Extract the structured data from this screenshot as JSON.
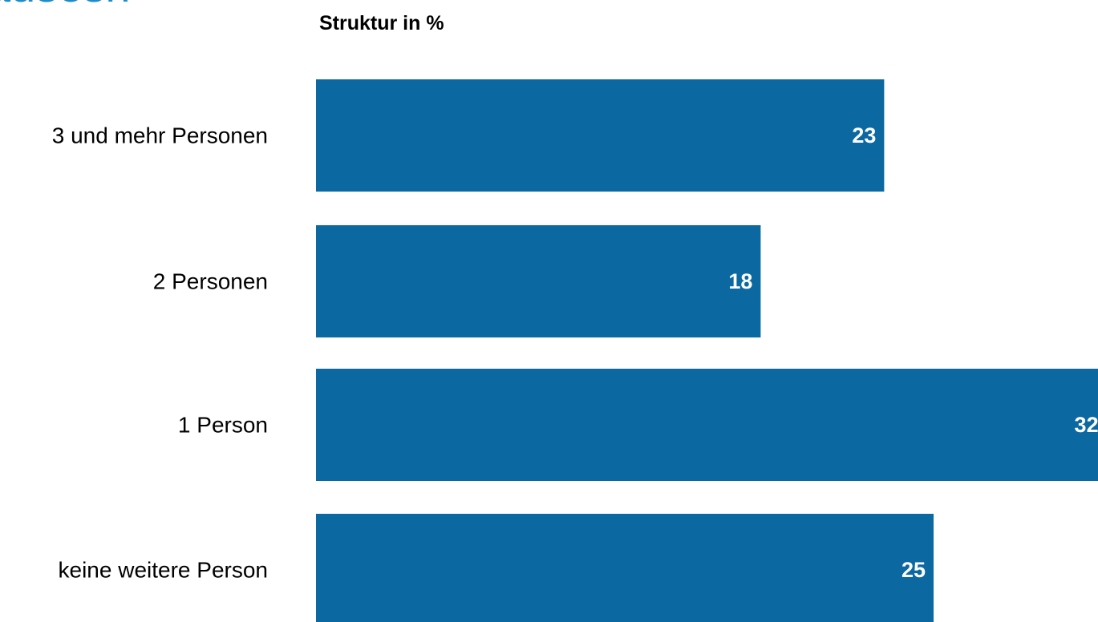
{
  "header": {
    "title_fragment": "ausesh"
  },
  "chart_data": {
    "type": "bar",
    "orientation": "horizontal",
    "title": "Struktur in %",
    "categories": [
      "3 und mehr Personen",
      "2 Personen",
      "1 Person",
      "keine weitere Person"
    ],
    "values": [
      23,
      18,
      32,
      25
    ],
    "xlabel": "",
    "ylabel": "",
    "grid": false,
    "legend": "none",
    "data_labels": "inside-end"
  },
  "colors": {
    "bar": "#0b68a0",
    "title_fragment": "#1a8ccc",
    "data_label": "#ffffff",
    "text": "#000000"
  }
}
